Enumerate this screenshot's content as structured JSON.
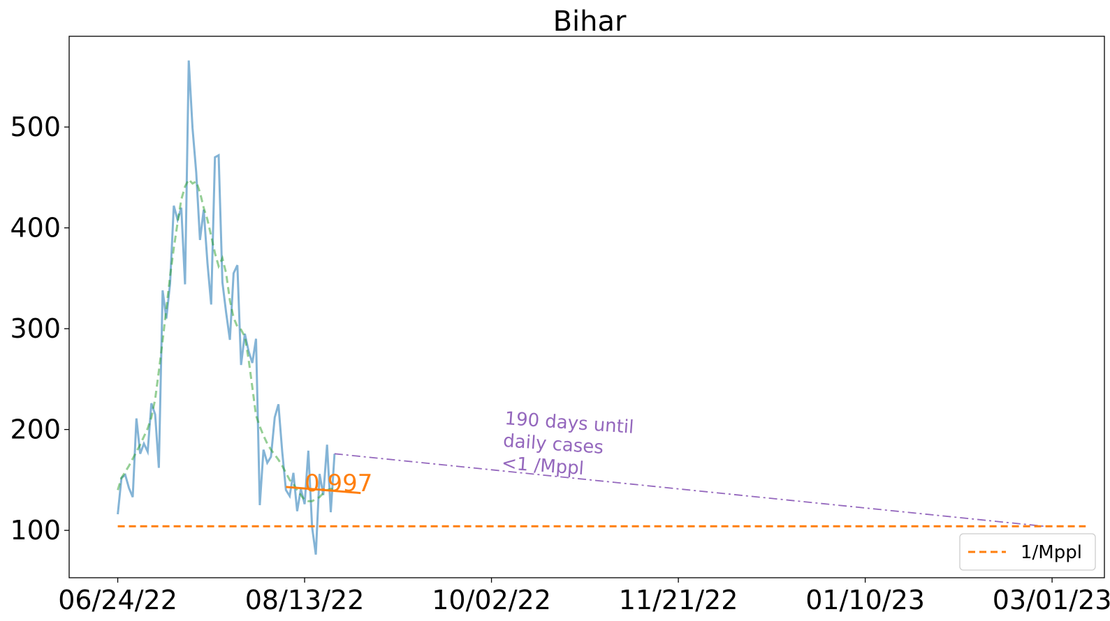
{
  "chart_data": {
    "type": "line",
    "title": "Bihar",
    "xlabel": "",
    "ylabel": "",
    "x_start": "2022-06-24",
    "x_ticks": [
      "06/24/22",
      "08/13/22",
      "10/02/22",
      "11/21/22",
      "01/10/23",
      "03/01/23"
    ],
    "xlim": [
      "2022-06-11",
      "2023-03-15"
    ],
    "ylim": [
      53,
      590
    ],
    "y_ticks": [
      100,
      200,
      300,
      400,
      500
    ],
    "grid": false,
    "legend_position": "lower-right",
    "series": [
      {
        "role": "daily cases",
        "color": "#1f77b4",
        "style": "solid",
        "opacity": 0.55,
        "values": [
          116,
          152,
          155,
          142,
          133,
          211,
          176,
          186,
          178,
          226,
          215,
          162,
          338,
          310,
          345,
          422,
          408,
          420,
          344,
          566,
          499,
          455,
          388,
          418,
          365,
          324,
          470,
          472,
          346,
          316,
          289,
          355,
          363,
          264,
          295,
          278,
          266,
          290,
          125,
          180,
          167,
          173,
          212,
          225,
          178,
          140,
          134,
          157,
          119,
          141,
          126,
          179,
          103,
          76,
          156,
          135,
          185,
          118,
          176
        ]
      },
      {
        "role": "smoothed trend",
        "color": "#2ca02c",
        "style": "dashed",
        "opacity": 0.5,
        "values": [
          140,
          152,
          158,
          164,
          171,
          178,
          185,
          193,
          201,
          212,
          230,
          258,
          288,
          320,
          352,
          380,
          405,
          428,
          441,
          448,
          444,
          446,
          435,
          420,
          408,
          392,
          375,
          362,
          370,
          355,
          328,
          311,
          302,
          299,
          292,
          270,
          242,
          214,
          203,
          194,
          186,
          180,
          175,
          170,
          164,
          157,
          150,
          146,
          140,
          135,
          130,
          129,
          129,
          131,
          133,
          137,
          140,
          141,
          141
        ]
      },
      {
        "role": "recent fit",
        "color": "#ff7f0e",
        "style": "solid",
        "x_dates": [
          "2022-08-08",
          "2022-08-28"
        ],
        "values": [
          143,
          137
        ]
      },
      {
        "role": "projection",
        "color": "#9467bd",
        "style": "dashdot",
        "x_dates": [
          "2022-08-21",
          "2023-02-27"
        ],
        "values": [
          176,
          104
        ]
      },
      {
        "name": "1/Mppl",
        "color": "#ff7f0e",
        "style": "dashed",
        "x_dates": [
          "2022-06-24",
          "2023-03-10"
        ],
        "values": [
          104,
          104
        ]
      }
    ],
    "annotations": [
      {
        "text_lines": [
          "190 days until",
          "daily cases",
          "<1 /Mppl"
        ],
        "color": "#9467bd"
      },
      {
        "text": "0.997",
        "color": "#ff7f0e"
      }
    ],
    "legend": [
      {
        "label": "1/Mppl",
        "color": "#ff7f0e",
        "style": "dashed"
      }
    ]
  }
}
